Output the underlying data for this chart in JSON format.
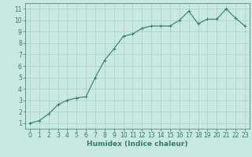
{
  "x": [
    0,
    1,
    2,
    3,
    4,
    5,
    6,
    7,
    8,
    9,
    10,
    11,
    12,
    13,
    14,
    15,
    16,
    17,
    18,
    19,
    20,
    21,
    22,
    23
  ],
  "y": [
    1.0,
    1.2,
    1.8,
    2.6,
    3.0,
    3.2,
    3.3,
    5.0,
    6.5,
    7.5,
    8.6,
    8.8,
    9.3,
    9.5,
    9.5,
    9.5,
    10.0,
    10.8,
    9.7,
    10.1,
    10.1,
    11.0,
    10.2,
    9.5
  ],
  "line_color": "#2e7d6e",
  "marker": "+",
  "bg_color": "#c8e8e0",
  "grid_color": "#aacfca",
  "xlabel": "Humidex (Indice chaleur)",
  "xlim": [
    -0.5,
    23.5
  ],
  "ylim": [
    0.5,
    11.5
  ],
  "yticks": [
    1,
    2,
    3,
    4,
    5,
    6,
    7,
    8,
    9,
    10,
    11
  ],
  "xticks": [
    0,
    1,
    2,
    3,
    4,
    5,
    6,
    7,
    8,
    9,
    10,
    11,
    12,
    13,
    14,
    15,
    16,
    17,
    18,
    19,
    20,
    21,
    22,
    23
  ],
  "tick_color": "#2e7d6e",
  "label_color": "#2e7d6e",
  "axis_color": "#2e7d6e",
  "xlabel_fontsize": 6.5,
  "tick_fontsize": 5.5,
  "linewidth": 0.8,
  "markersize": 3,
  "markeredgewidth": 0.7
}
